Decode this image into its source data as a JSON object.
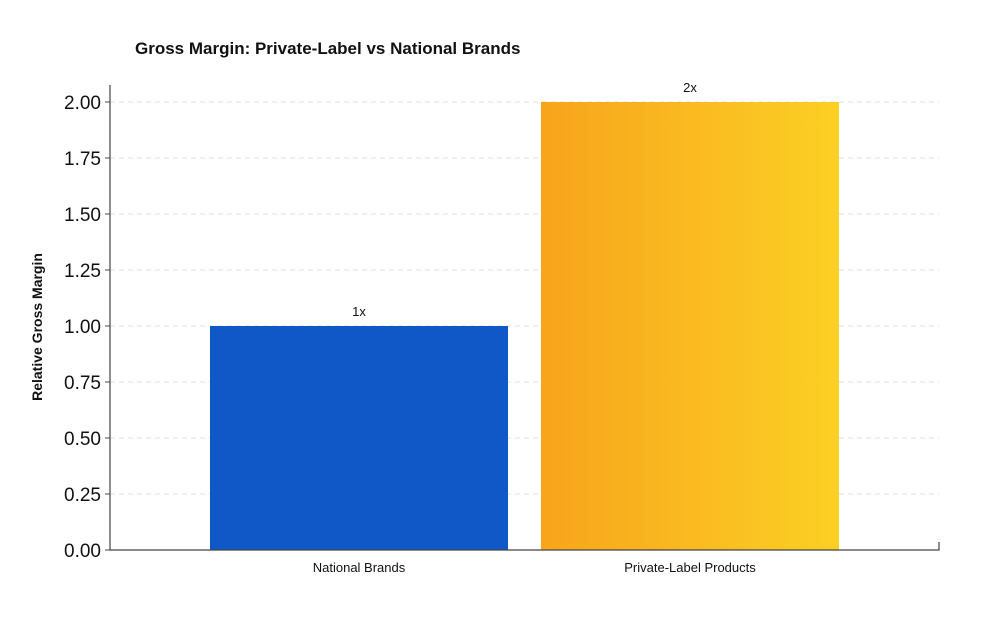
{
  "chart_data": {
    "type": "bar",
    "title": "Gross Margin: Private-Label vs National Brands",
    "xlabel": "",
    "ylabel": "Relative Gross Margin",
    "ylim": [
      0,
      2.0
    ],
    "yticks": [
      "0.00",
      "0.25",
      "0.50",
      "0.75",
      "1.00",
      "1.25",
      "1.50",
      "1.75",
      "2.00"
    ],
    "categories": [
      "National Brands",
      "Private-Label Products"
    ],
    "values": [
      1.0,
      2.0
    ],
    "data_labels": [
      "1x",
      "2x"
    ],
    "colors": {
      "national": "#1057c8",
      "private_start": "#f8a41c",
      "private_end": "#fbd024"
    },
    "grid": true,
    "legend": "none"
  }
}
